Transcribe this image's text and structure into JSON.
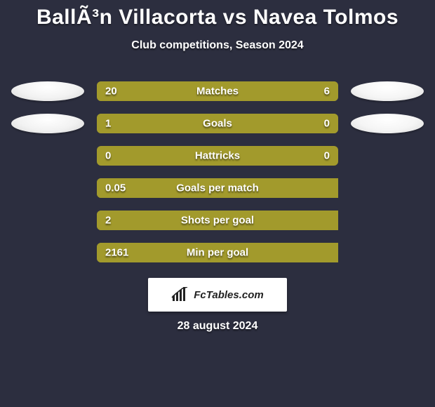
{
  "title": "BallÃ³n Villacorta vs Navea Tolmos",
  "subtitle": "Club competitions, Season 2024",
  "date": "28 august 2024",
  "bg_color": "#2c2e3f",
  "bar_colors": {
    "left_fill": "#a29a2c",
    "right_fill": "#a29a2c",
    "track": "#a29a2c",
    "highlight_left": "#a29a2c",
    "highlight_right": "#a29a2c"
  },
  "badge": {
    "text": "FcTables.com"
  },
  "stats": [
    {
      "label": "Matches",
      "left_value": "20",
      "right_value": "6",
      "left_pct": 74,
      "right_pct": 26,
      "show_placeholders": true,
      "left_color": "#a29a2c",
      "right_color": "#a29a2c",
      "track_color": "#7f7b3a"
    },
    {
      "label": "Goals",
      "left_value": "1",
      "right_value": "0",
      "left_pct": 76,
      "right_pct": 24,
      "show_placeholders": true,
      "left_color": "#a29a2c",
      "right_color": "#a29a2c",
      "track_color": "#7f7b3a"
    },
    {
      "label": "Hattricks",
      "left_value": "0",
      "right_value": "0",
      "left_pct": 0,
      "right_pct": 0,
      "show_placeholders": false,
      "left_color": "#a29a2c",
      "right_color": "#a29a2c",
      "track_color": "#a29a2c"
    },
    {
      "label": "Goals per match",
      "left_value": "0.05",
      "right_value": "",
      "left_pct": 100,
      "right_pct": 0,
      "show_placeholders": false,
      "left_color": "#a29a2c",
      "right_color": "#a29a2c",
      "track_color": "#a29a2c"
    },
    {
      "label": "Shots per goal",
      "left_value": "2",
      "right_value": "",
      "left_pct": 100,
      "right_pct": 0,
      "show_placeholders": false,
      "left_color": "#a29a2c",
      "right_color": "#a29a2c",
      "track_color": "#a29a2c"
    },
    {
      "label": "Min per goal",
      "left_value": "2161",
      "right_value": "",
      "left_pct": 100,
      "right_pct": 0,
      "show_placeholders": false,
      "left_color": "#a29a2c",
      "right_color": "#a29a2c",
      "track_color": "#a29a2c"
    }
  ]
}
